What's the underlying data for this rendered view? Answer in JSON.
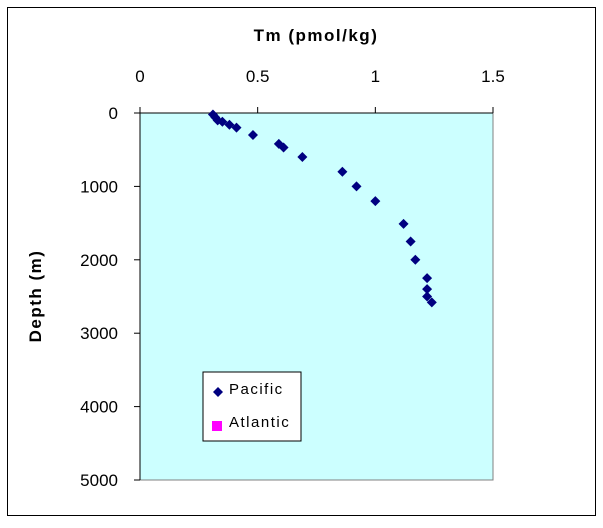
{
  "chart_data": {
    "type": "scatter",
    "title": "",
    "xlabel": "Tm (pmol/kg)",
    "ylabel": "Depth (m)",
    "xlim": [
      0,
      1.5
    ],
    "ylim": [
      0,
      5000
    ],
    "y_inverted": true,
    "x_axis_position": "top",
    "x_ticks": [
      "0",
      "0.5",
      "1",
      "1.5"
    ],
    "y_ticks": [
      "0",
      "1000",
      "2000",
      "3000",
      "4000",
      "5000"
    ],
    "plot_background": "#ccffff",
    "grid": false,
    "legend_position": "bottom-left inside plot",
    "series": [
      {
        "name": "Pacific",
        "marker": "diamond",
        "color": "#000080",
        "points": [
          {
            "x": 0.31,
            "y": 20
          },
          {
            "x": 0.32,
            "y": 60
          },
          {
            "x": 0.33,
            "y": 100
          },
          {
            "x": 0.35,
            "y": 120
          },
          {
            "x": 0.38,
            "y": 160
          },
          {
            "x": 0.41,
            "y": 200
          },
          {
            "x": 0.48,
            "y": 300
          },
          {
            "x": 0.59,
            "y": 420
          },
          {
            "x": 0.61,
            "y": 470
          },
          {
            "x": 0.69,
            "y": 600
          },
          {
            "x": 0.86,
            "y": 800
          },
          {
            "x": 0.92,
            "y": 1000
          },
          {
            "x": 1.0,
            "y": 1200
          },
          {
            "x": 1.12,
            "y": 1510
          },
          {
            "x": 1.15,
            "y": 1750
          },
          {
            "x": 1.17,
            "y": 2000
          },
          {
            "x": 1.22,
            "y": 2250
          },
          {
            "x": 1.22,
            "y": 2400
          },
          {
            "x": 1.22,
            "y": 2500
          },
          {
            "x": 1.24,
            "y": 2580
          }
        ]
      },
      {
        "name": "Atlantic",
        "marker": "square",
        "color": "#ff00ff",
        "points": []
      }
    ]
  }
}
